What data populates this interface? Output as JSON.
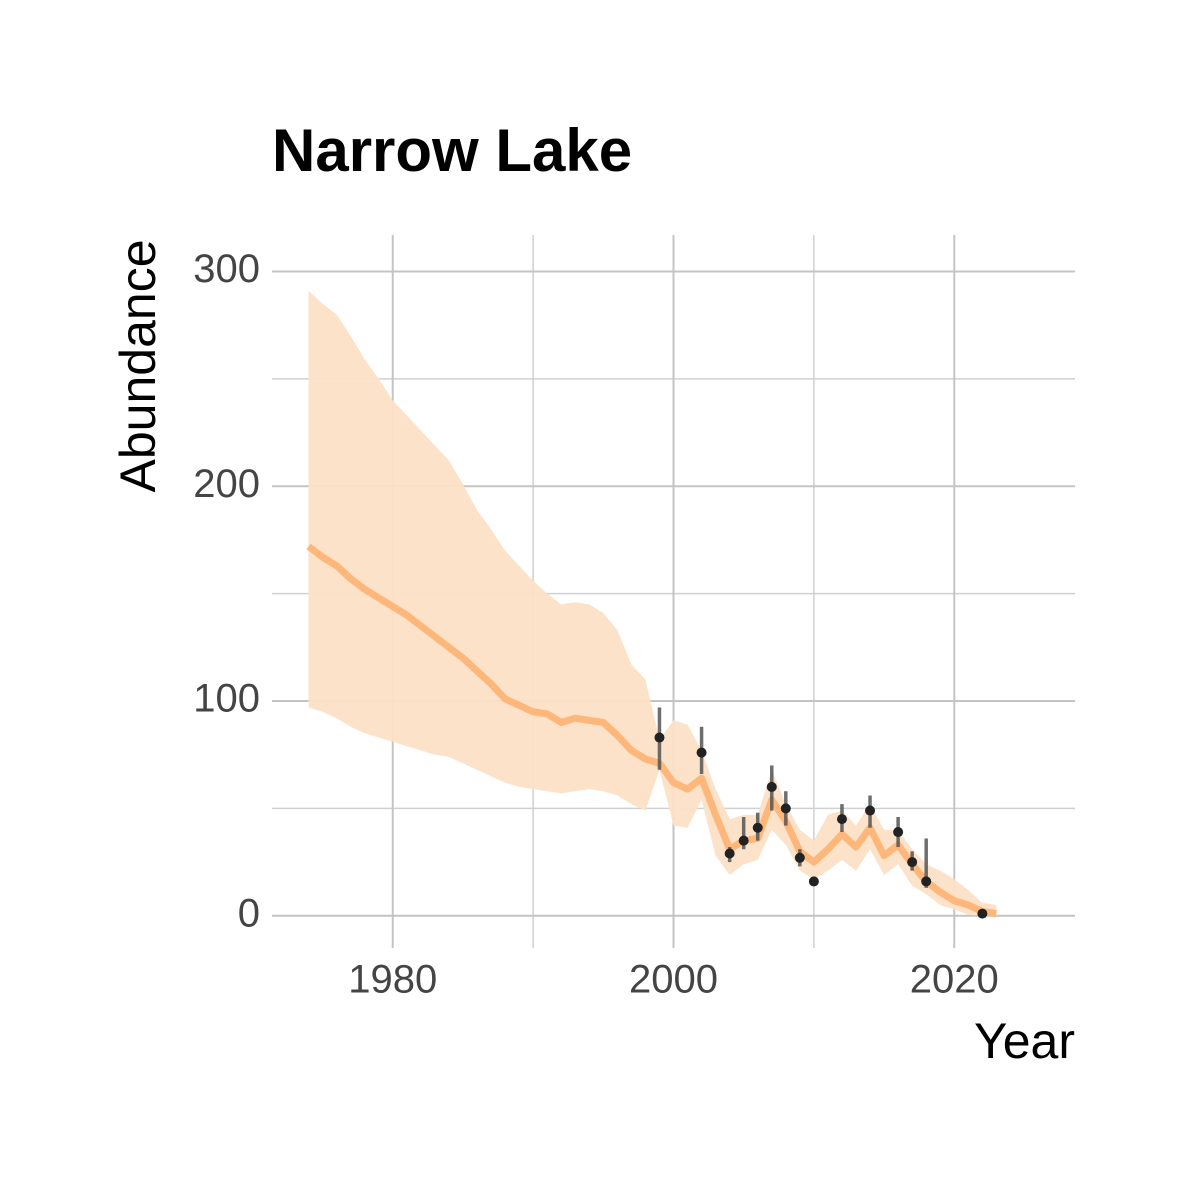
{
  "chart_data": {
    "type": "line",
    "title": "Narrow Lake",
    "x_label": "Year",
    "y_label": "Abundance",
    "xlim": [
      1971.4,
      2028.6
    ],
    "ylim": [
      -15,
      317
    ],
    "xticks": [
      1980,
      2000,
      2020
    ],
    "yticks": [
      0,
      100,
      200,
      300
    ],
    "x_minor_grid": [
      1990,
      2010
    ],
    "y_minor_grid": [
      50,
      150,
      250
    ],
    "grid": true,
    "x": [
      1974,
      1975,
      1976,
      1977,
      1978,
      1979,
      1980,
      1981,
      1982,
      1983,
      1984,
      1985,
      1986,
      1987,
      1988,
      1989,
      1990,
      1991,
      1992,
      1993,
      1994,
      1995,
      1996,
      1997,
      1998,
      1999,
      2000,
      2001,
      2002,
      2003,
      2004,
      2005,
      2006,
      2007,
      2008,
      2009,
      2010,
      2011,
      2012,
      2013,
      2014,
      2015,
      2016,
      2017,
      2018,
      2019,
      2020,
      2021,
      2022,
      2023
    ],
    "color": "#fdb271",
    "values": [
      172,
      167,
      163,
      157,
      152,
      148,
      144,
      140,
      135,
      130,
      125,
      120,
      114,
      108,
      101,
      98,
      95,
      94,
      90,
      92,
      91,
      90,
      84,
      77,
      73,
      71,
      62,
      59,
      64,
      47,
      31,
      35,
      36,
      54,
      44,
      30,
      25,
      31,
      38,
      32,
      41,
      28,
      33,
      24,
      16,
      11,
      7,
      5,
      2,
      1
    ],
    "band": {
      "color": "#fce0c6",
      "upper": [
        291,
        285,
        280,
        270,
        259,
        250,
        240,
        233,
        226,
        219,
        212,
        201,
        189,
        180,
        170,
        163,
        156,
        150,
        145,
        146,
        145,
        141,
        133,
        117,
        110,
        82,
        91,
        89,
        77,
        59,
        45,
        47,
        47,
        68,
        52,
        40,
        35,
        47,
        49,
        42,
        52,
        40,
        40,
        31,
        24,
        21,
        17,
        12,
        6,
        5
      ],
      "lower": [
        97,
        95,
        92,
        88,
        85,
        83,
        81,
        79,
        77,
        75,
        74,
        71,
        68,
        65,
        62,
        60,
        59,
        58,
        57,
        58,
        59,
        58,
        56,
        52,
        49,
        68,
        42,
        41,
        54,
        28,
        19,
        24,
        26,
        40,
        33,
        21,
        17,
        21,
        26,
        21,
        31,
        19,
        24,
        14,
        10,
        5,
        3,
        0.5,
        0,
        0
      ]
    },
    "observations": {
      "color": "#222222",
      "error_color": "#555555",
      "x": [
        1999,
        2002,
        2004,
        2005,
        2006,
        2007,
        2008,
        2009,
        2010,
        2012,
        2014,
        2016,
        2017,
        2018,
        2022
      ],
      "values": [
        83,
        76,
        29,
        35,
        41,
        60,
        50,
        27,
        16,
        45,
        49,
        39,
        25,
        16,
        1
      ],
      "lower": [
        68,
        66,
        25,
        31,
        35,
        49,
        42,
        23,
        14,
        39,
        41,
        32,
        21,
        13,
        0
      ],
      "upper": [
        97,
        88,
        32,
        46,
        48,
        70,
        58,
        31,
        18,
        52,
        56,
        46,
        30,
        36,
        2
      ]
    }
  }
}
